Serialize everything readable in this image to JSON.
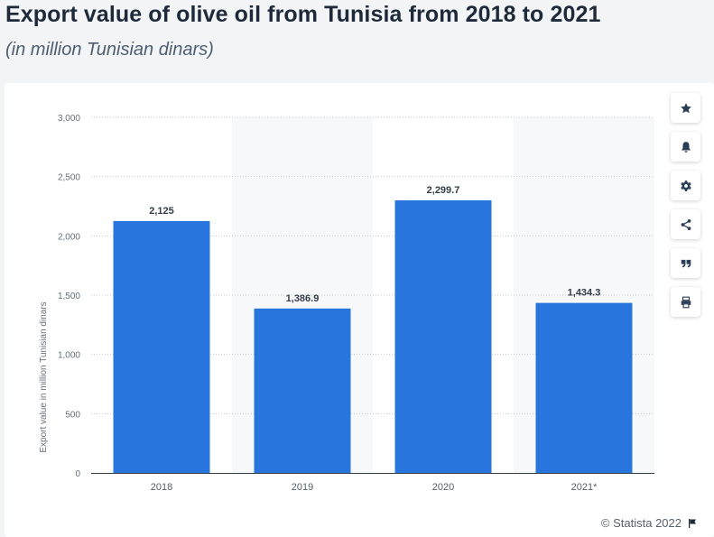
{
  "header": {
    "title": "Export value of olive oil from Tunisia from 2018 to 2021",
    "subtitle": "(in million Tunisian dinars)"
  },
  "toolbar": {
    "buttons": [
      {
        "name": "favorite-button",
        "icon": "star-icon"
      },
      {
        "name": "notification-button",
        "icon": "bell-icon"
      },
      {
        "name": "settings-button",
        "icon": "gear-icon"
      },
      {
        "name": "share-button",
        "icon": "share-icon"
      },
      {
        "name": "cite-button",
        "icon": "quote-icon"
      },
      {
        "name": "print-button",
        "icon": "print-icon"
      }
    ]
  },
  "footer": {
    "credit": "© Statista 2022"
  },
  "colors": {
    "bar": "#2876dd",
    "band": "#f7f8fa",
    "grid": "#c8cdd3",
    "icon": "#2c3e55"
  },
  "chart_data": {
    "type": "bar",
    "title": "Export value of olive oil from Tunisia from 2018 to 2021",
    "subtitle": "(in million Tunisian dinars)",
    "xlabel": "",
    "ylabel": "Export value in million Tunisian dinars",
    "categories": [
      "2018",
      "2019",
      "2020",
      "2021*"
    ],
    "values": [
      2125,
      1386.9,
      2299.7,
      1434.3
    ],
    "value_labels": [
      "2,125",
      "1,386.9",
      "2,299.7",
      "1,434.3"
    ],
    "ylim": [
      0,
      3000
    ],
    "yticks": [
      0,
      500,
      1000,
      1500,
      2000,
      2500,
      3000
    ],
    "ytick_labels": [
      "0",
      "500",
      "1,000",
      "1,500",
      "2,000",
      "2,500",
      "3,000"
    ],
    "grid": true,
    "legend": "none"
  }
}
